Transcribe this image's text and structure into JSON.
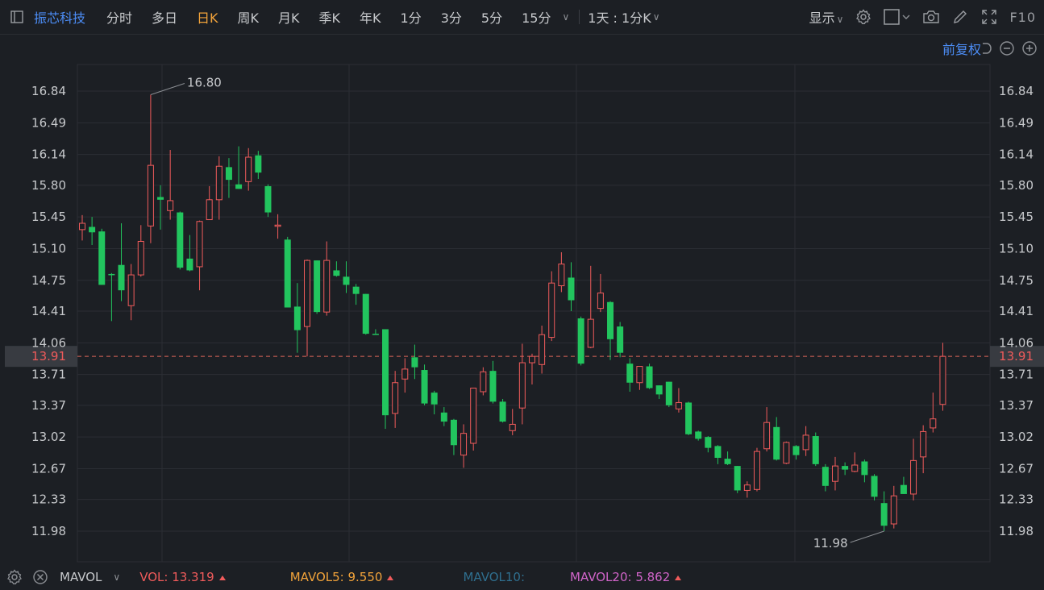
{
  "toolbar": {
    "stock_name": "振芯科技",
    "periods": [
      "分时",
      "多日",
      "日K",
      "周K",
      "月K",
      "季K",
      "年K",
      "1分",
      "3分",
      "5分",
      "15分"
    ],
    "active_period": "日K",
    "range_label": "1天 : 1分K",
    "display_label": "显示",
    "f10_label": "F10"
  },
  "subbar": {
    "adjust_label": "前复权"
  },
  "price_axis": {
    "ticks": [
      "16.84",
      "16.49",
      "16.14",
      "15.80",
      "15.45",
      "15.10",
      "14.75",
      "14.41",
      "14.06",
      "13.71",
      "13.37",
      "13.02",
      "12.67",
      "12.33",
      "11.98"
    ]
  },
  "current_price": {
    "label": "13.91",
    "value": 13.91
  },
  "annotations": {
    "high_label": "16.80",
    "low_label": "11.98"
  },
  "indicator_bar": {
    "indicator": "MAVOL",
    "vol": {
      "label": "VOL:",
      "value": "13.319",
      "color": "#f05b5b"
    },
    "mavol5": {
      "label": "MAVOL5:",
      "value": "9.550",
      "color": "#f2a33a"
    },
    "mavol10": {
      "label": "MAVOL10:",
      "value": "",
      "color": "#2f6f8f"
    },
    "mavol20": {
      "label": "MAVOL20:",
      "value": "5.862",
      "color": "#d064c8"
    }
  },
  "colors": {
    "up": "#f05b5b",
    "down": "#22c55e",
    "accent": "#4c8df6",
    "active_tab": "#f2a33a",
    "grid": "#2b2e34",
    "background": "#1c1f24"
  },
  "chart_data": {
    "type": "candlestick",
    "ylim": [
      11.98,
      16.84
    ],
    "yticks": [
      16.84,
      16.49,
      16.14,
      15.8,
      15.45,
      15.1,
      14.75,
      14.41,
      14.06,
      13.71,
      13.37,
      13.02,
      12.67,
      12.33,
      11.98
    ],
    "candles": [
      {
        "o": 15.31,
        "c": 15.38,
        "h": 15.47,
        "l": 15.19
      },
      {
        "o": 15.34,
        "c": 15.28,
        "h": 15.45,
        "l": 15.14
      },
      {
        "o": 15.29,
        "c": 14.7,
        "h": 15.32,
        "l": 14.7
      },
      {
        "o": 14.82,
        "c": 14.81,
        "h": 14.83,
        "l": 14.3
      },
      {
        "o": 14.92,
        "c": 14.64,
        "h": 15.38,
        "l": 14.52
      },
      {
        "o": 14.47,
        "c": 14.81,
        "h": 14.93,
        "l": 14.31
      },
      {
        "o": 14.81,
        "c": 15.18,
        "h": 15.36,
        "l": 14.79
      },
      {
        "o": 15.35,
        "c": 16.02,
        "h": 16.8,
        "l": 15.16
      },
      {
        "o": 15.67,
        "c": 15.64,
        "h": 15.8,
        "l": 15.31
      },
      {
        "o": 15.52,
        "c": 15.63,
        "h": 16.19,
        "l": 15.42
      },
      {
        "o": 15.5,
        "c": 14.89,
        "h": 15.51,
        "l": 14.87
      },
      {
        "o": 14.99,
        "c": 14.86,
        "h": 15.25,
        "l": 14.85
      },
      {
        "o": 14.9,
        "c": 15.4,
        "h": 15.41,
        "l": 14.64
      },
      {
        "o": 15.42,
        "c": 15.64,
        "h": 15.79,
        "l": 15.42
      },
      {
        "o": 15.64,
        "c": 16.01,
        "h": 16.12,
        "l": 15.42
      },
      {
        "o": 16.0,
        "c": 15.86,
        "h": 16.1,
        "l": 15.66
      },
      {
        "o": 15.81,
        "c": 15.76,
        "h": 16.23,
        "l": 15.76
      },
      {
        "o": 15.84,
        "c": 16.11,
        "h": 16.21,
        "l": 15.74
      },
      {
        "o": 16.13,
        "c": 15.94,
        "h": 16.18,
        "l": 15.87
      },
      {
        "o": 15.79,
        "c": 15.5,
        "h": 15.81,
        "l": 15.45
      },
      {
        "o": 15.36,
        "c": 15.36,
        "h": 15.48,
        "l": 15.21
      },
      {
        "o": 15.2,
        "c": 14.45,
        "h": 15.23,
        "l": 14.45
      },
      {
        "o": 14.46,
        "c": 14.2,
        "h": 14.72,
        "l": 13.95
      },
      {
        "o": 14.24,
        "c": 14.97,
        "h": 14.98,
        "l": 13.91
      },
      {
        "o": 14.97,
        "c": 14.4,
        "h": 14.97,
        "l": 14.38
      },
      {
        "o": 14.4,
        "c": 14.97,
        "h": 15.18,
        "l": 14.36
      },
      {
        "o": 14.86,
        "c": 14.8,
        "h": 14.96,
        "l": 14.79
      },
      {
        "o": 14.79,
        "c": 14.7,
        "h": 14.96,
        "l": 14.61
      },
      {
        "o": 14.68,
        "c": 14.6,
        "h": 14.71,
        "l": 14.48
      },
      {
        "o": 14.6,
        "c": 14.16,
        "h": 14.6,
        "l": 14.15
      },
      {
        "o": 14.16,
        "c": 14.15,
        "h": 14.21,
        "l": 14.15
      },
      {
        "o": 14.21,
        "c": 13.26,
        "h": 14.21,
        "l": 13.11
      },
      {
        "o": 13.28,
        "c": 13.62,
        "h": 13.75,
        "l": 13.12
      },
      {
        "o": 13.66,
        "c": 13.77,
        "h": 13.89,
        "l": 13.51
      },
      {
        "o": 13.9,
        "c": 13.79,
        "h": 14.04,
        "l": 13.66
      },
      {
        "o": 13.76,
        "c": 13.39,
        "h": 13.82,
        "l": 13.37
      },
      {
        "o": 13.51,
        "c": 13.38,
        "h": 13.53,
        "l": 13.27
      },
      {
        "o": 13.29,
        "c": 13.19,
        "h": 13.35,
        "l": 13.14
      },
      {
        "o": 13.21,
        "c": 12.93,
        "h": 13.22,
        "l": 12.82
      },
      {
        "o": 12.82,
        "c": 13.06,
        "h": 13.16,
        "l": 12.68
      },
      {
        "o": 12.95,
        "c": 13.56,
        "h": 13.56,
        "l": 12.87
      },
      {
        "o": 13.52,
        "c": 13.74,
        "h": 13.79,
        "l": 13.48
      },
      {
        "o": 13.75,
        "c": 13.41,
        "h": 13.86,
        "l": 13.39
      },
      {
        "o": 13.41,
        "c": 13.19,
        "h": 13.44,
        "l": 13.18
      },
      {
        "o": 13.09,
        "c": 13.16,
        "h": 13.33,
        "l": 13.04
      },
      {
        "o": 13.34,
        "c": 13.84,
        "h": 14.05,
        "l": 13.16
      },
      {
        "o": 13.84,
        "c": 13.91,
        "h": 13.94,
        "l": 13.6
      },
      {
        "o": 13.82,
        "c": 14.15,
        "h": 14.25,
        "l": 13.72
      },
      {
        "o": 14.12,
        "c": 14.72,
        "h": 14.85,
        "l": 14.08
      },
      {
        "o": 14.69,
        "c": 14.93,
        "h": 15.06,
        "l": 14.62
      },
      {
        "o": 14.78,
        "c": 14.53,
        "h": 14.95,
        "l": 14.41
      },
      {
        "o": 14.33,
        "c": 13.83,
        "h": 14.35,
        "l": 13.81
      },
      {
        "o": 14.01,
        "c": 14.32,
        "h": 14.91,
        "l": 14.0
      },
      {
        "o": 14.44,
        "c": 14.61,
        "h": 14.82,
        "l": 14.4
      },
      {
        "o": 14.51,
        "c": 14.1,
        "h": 14.52,
        "l": 13.87
      },
      {
        "o": 14.24,
        "c": 13.95,
        "h": 14.29,
        "l": 13.9
      },
      {
        "o": 13.83,
        "c": 13.62,
        "h": 13.89,
        "l": 13.52
      },
      {
        "o": 13.62,
        "c": 13.8,
        "h": 13.8,
        "l": 13.54
      },
      {
        "o": 13.8,
        "c": 13.56,
        "h": 13.83,
        "l": 13.55
      },
      {
        "o": 13.59,
        "c": 13.49,
        "h": 13.59,
        "l": 13.44
      },
      {
        "o": 13.63,
        "c": 13.37,
        "h": 13.63,
        "l": 13.35
      },
      {
        "o": 13.33,
        "c": 13.4,
        "h": 13.56,
        "l": 13.29
      },
      {
        "o": 13.4,
        "c": 13.05,
        "h": 13.41,
        "l": 13.04
      },
      {
        "o": 13.08,
        "c": 13.0,
        "h": 13.09,
        "l": 12.98
      },
      {
        "o": 13.02,
        "c": 12.9,
        "h": 13.03,
        "l": 12.85
      },
      {
        "o": 12.92,
        "c": 12.79,
        "h": 12.93,
        "l": 12.72
      },
      {
        "o": 12.78,
        "c": 12.72,
        "h": 12.86,
        "l": 12.71
      },
      {
        "o": 12.7,
        "c": 12.43,
        "h": 12.7,
        "l": 12.4
      },
      {
        "o": 12.43,
        "c": 12.49,
        "h": 12.53,
        "l": 12.35
      },
      {
        "o": 12.44,
        "c": 12.86,
        "h": 12.9,
        "l": 12.42
      },
      {
        "o": 12.89,
        "c": 13.18,
        "h": 13.35,
        "l": 12.86
      },
      {
        "o": 13.13,
        "c": 12.77,
        "h": 13.24,
        "l": 12.76
      },
      {
        "o": 12.73,
        "c": 12.96,
        "h": 12.97,
        "l": 12.72
      },
      {
        "o": 12.92,
        "c": 12.82,
        "h": 12.93,
        "l": 12.77
      },
      {
        "o": 12.88,
        "c": 13.04,
        "h": 13.14,
        "l": 12.81
      },
      {
        "o": 13.03,
        "c": 12.72,
        "h": 13.07,
        "l": 12.7
      },
      {
        "o": 12.69,
        "c": 12.48,
        "h": 12.72,
        "l": 12.42
      },
      {
        "o": 12.53,
        "c": 12.7,
        "h": 12.8,
        "l": 12.43
      },
      {
        "o": 12.7,
        "c": 12.66,
        "h": 12.74,
        "l": 12.6
      },
      {
        "o": 12.64,
        "c": 12.71,
        "h": 12.85,
        "l": 12.63
      },
      {
        "o": 12.75,
        "c": 12.6,
        "h": 12.77,
        "l": 12.52
      },
      {
        "o": 12.59,
        "c": 12.36,
        "h": 12.61,
        "l": 12.32
      },
      {
        "o": 12.29,
        "c": 12.04,
        "h": 12.42,
        "l": 11.98
      },
      {
        "o": 12.06,
        "c": 12.37,
        "h": 12.48,
        "l": 12.01
      },
      {
        "o": 12.49,
        "c": 12.39,
        "h": 12.58,
        "l": 12.39
      },
      {
        "o": 12.39,
        "c": 12.76,
        "h": 13.0,
        "l": 12.32
      },
      {
        "o": 12.8,
        "c": 13.08,
        "h": 13.15,
        "l": 12.62
      },
      {
        "o": 13.12,
        "c": 13.22,
        "h": 13.51,
        "l": 13.07
      },
      {
        "o": 13.38,
        "c": 13.91,
        "h": 14.06,
        "l": 13.31
      }
    ]
  }
}
